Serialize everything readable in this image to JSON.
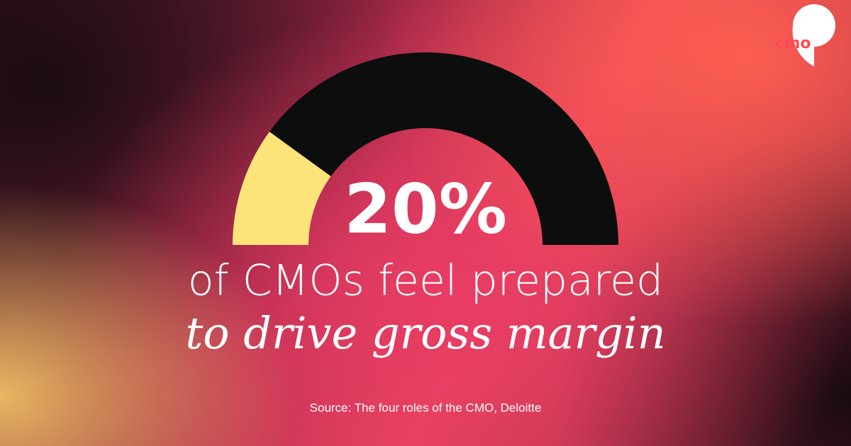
{
  "chart_data": {
    "type": "gauge",
    "values": [
      20
    ],
    "value_labels": [
      "20%"
    ],
    "ylim": [
      0,
      100
    ],
    "color": "#fde47a",
    "track_color": "#0c0d0d",
    "subtitle": [
      "of CMOs feel prepared",
      "to drive gross margin"
    ],
    "source": "Source: The four roles of the CMO, Deloitte",
    "logo": "cmo"
  }
}
